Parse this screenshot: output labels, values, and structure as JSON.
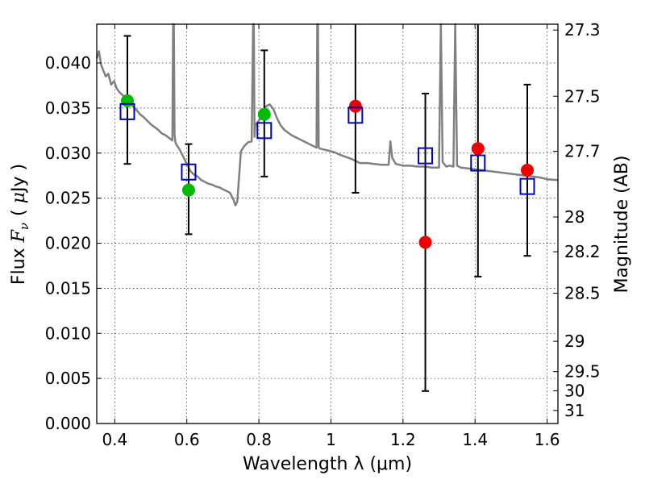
{
  "chart_data": {
    "type": "scatter",
    "xlabel": "Wavelength  λ (μm)",
    "ylabel": "Flux  F_ν  ( μJy )",
    "ylabel_parts": {
      "prefix": "Flux",
      "symbol": "F",
      "subscript": "ν",
      "unit_open": "(",
      "unit_mu": "μ",
      "unit": "Jy",
      "unit_close": ")"
    },
    "y2label": "Magnitude (AB)",
    "xlim": [
      0.35,
      1.63
    ],
    "ylim": [
      0.0,
      0.0443
    ],
    "grid": true,
    "x_ticks": [
      0.4,
      0.6,
      0.8,
      1.0,
      1.2,
      1.4,
      1.6
    ],
    "x_tick_labels": [
      "0.4",
      "0.6",
      "0.8",
      "1",
      "1.2",
      "1.4",
      "1.6"
    ],
    "y_ticks": [
      0.0,
      0.005,
      0.01,
      0.015,
      0.02,
      0.025,
      0.03,
      0.035,
      0.04
    ],
    "y_tick_labels": [
      "0.000",
      "0.005",
      "0.010",
      "0.015",
      "0.020",
      "0.025",
      "0.030",
      "0.035",
      "0.040"
    ],
    "y2_ticks": [
      {
        "mag": 27.3,
        "label": "27.3"
      },
      {
        "mag": 27.5,
        "label": "27.5"
      },
      {
        "mag": 27.7,
        "label": "27.7"
      },
      {
        "mag": 28.0,
        "label": "28"
      },
      {
        "mag": 28.2,
        "label": "28.2"
      },
      {
        "mag": 28.5,
        "label": "28.5"
      },
      {
        "mag": 29.0,
        "label": "29"
      },
      {
        "mag": 29.5,
        "label": "29.5"
      },
      {
        "mag": 30.0,
        "label": "30"
      },
      {
        "mag": 31.0,
        "label": "31"
      }
    ],
    "colors": {
      "model": "#808080",
      "green": "#00bb00",
      "red": "#ee0000",
      "box": "#0000bb",
      "error": "#000000"
    },
    "model_spectrum": {
      "x": [
        0.35,
        0.356,
        0.362,
        0.368,
        0.375,
        0.382,
        0.39,
        0.398,
        0.405,
        0.412,
        0.42,
        0.43,
        0.44,
        0.45,
        0.46,
        0.47,
        0.48,
        0.49,
        0.5,
        0.51,
        0.52,
        0.53,
        0.54,
        0.55,
        0.56,
        0.562,
        0.564,
        0.566,
        0.568,
        0.57,
        0.58,
        0.59,
        0.6,
        0.61,
        0.62,
        0.63,
        0.64,
        0.65,
        0.66,
        0.67,
        0.68,
        0.69,
        0.7,
        0.71,
        0.72,
        0.73,
        0.735,
        0.74,
        0.75,
        0.76,
        0.77,
        0.78,
        0.784,
        0.786,
        0.788,
        0.79,
        0.8,
        0.81,
        0.82,
        0.83,
        0.84,
        0.85,
        0.86,
        0.87,
        0.88,
        0.89,
        0.9,
        0.91,
        0.92,
        0.93,
        0.94,
        0.95,
        0.96,
        0.962,
        0.964,
        0.966,
        0.97,
        0.98,
        0.99,
        1.0,
        1.01,
        1.02,
        1.04,
        1.06,
        1.08,
        1.1,
        1.12,
        1.14,
        1.16,
        1.165,
        1.17,
        1.18,
        1.2,
        1.22,
        1.24,
        1.26,
        1.28,
        1.3,
        1.305,
        1.31,
        1.32,
        1.33,
        1.34,
        1.345,
        1.35,
        1.36,
        1.38,
        1.4,
        1.42,
        1.44,
        1.46,
        1.48,
        1.5,
        1.52,
        1.54,
        1.56,
        1.58,
        1.6,
        1.63
      ],
      "y": [
        0.0405,
        0.0413,
        0.0398,
        0.0392,
        0.0385,
        0.0388,
        0.0376,
        0.038,
        0.0372,
        0.0368,
        0.0365,
        0.0362,
        0.0357,
        0.0352,
        0.0348,
        0.0343,
        0.034,
        0.0336,
        0.0332,
        0.0329,
        0.0326,
        0.0322,
        0.032,
        0.0317,
        0.0314,
        0.0443,
        0.0443,
        0.032,
        0.0313,
        0.031,
        0.0304,
        0.0296,
        0.0288,
        0.028,
        0.0276,
        0.0274,
        0.027,
        0.0268,
        0.0266,
        0.0265,
        0.0263,
        0.0262,
        0.026,
        0.0258,
        0.0256,
        0.0248,
        0.0242,
        0.0246,
        0.0302,
        0.0308,
        0.0312,
        0.0313,
        0.0443,
        0.0443,
        0.0318,
        0.0331,
        0.0336,
        0.0344,
        0.0352,
        0.0354,
        0.0349,
        0.0339,
        0.0331,
        0.0326,
        0.0323,
        0.032,
        0.0318,
        0.0316,
        0.0314,
        0.0312,
        0.031,
        0.0308,
        0.0306,
        0.0443,
        0.0443,
        0.0306,
        0.0305,
        0.0304,
        0.0303,
        0.0302,
        0.0301,
        0.0299,
        0.0296,
        0.0293,
        0.0289,
        0.0289,
        0.0288,
        0.0287,
        0.0287,
        0.0313,
        0.0295,
        0.0288,
        0.0286,
        0.0286,
        0.0285,
        0.0285,
        0.0284,
        0.0284,
        0.0443,
        0.029,
        0.0285,
        0.0286,
        0.0285,
        0.0443,
        0.0286,
        0.0284,
        0.0283,
        0.0282,
        0.0281,
        0.028,
        0.0279,
        0.0278,
        0.0277,
        0.0276,
        0.0275,
        0.0274,
        0.0273,
        0.0271,
        0.027
      ]
    },
    "series": [
      {
        "marker": "circle",
        "color": "green",
        "points": [
          {
            "x": 0.435,
            "y": 0.0358,
            "err_low": 0.0288,
            "err_high": 0.043
          },
          {
            "x": 0.605,
            "y": 0.0259,
            "err_low": 0.021,
            "err_high": 0.031
          },
          {
            "x": 0.815,
            "y": 0.0343,
            "err_low": 0.0274,
            "err_high": 0.0414
          }
        ]
      },
      {
        "marker": "circle",
        "color": "red",
        "points": [
          {
            "x": 1.068,
            "y": 0.0352,
            "err_low": 0.0256,
            "err_high": 0.0443
          },
          {
            "x": 1.262,
            "y": 0.0201,
            "err_low": 0.0036,
            "err_high": 0.0366
          },
          {
            "x": 1.408,
            "y": 0.0305,
            "err_low": 0.0163,
            "err_high": 0.0443
          },
          {
            "x": 1.545,
            "y": 0.0281,
            "err_low": 0.0186,
            "err_high": 0.0376
          }
        ]
      },
      {
        "marker": "square",
        "color": "box",
        "points": [
          {
            "x": 0.435,
            "y": 0.0346
          },
          {
            "x": 0.605,
            "y": 0.0279
          },
          {
            "x": 0.815,
            "y": 0.0325
          },
          {
            "x": 1.068,
            "y": 0.0342
          },
          {
            "x": 1.262,
            "y": 0.0297
          },
          {
            "x": 1.408,
            "y": 0.0289
          },
          {
            "x": 1.545,
            "y": 0.0263
          }
        ]
      }
    ]
  }
}
